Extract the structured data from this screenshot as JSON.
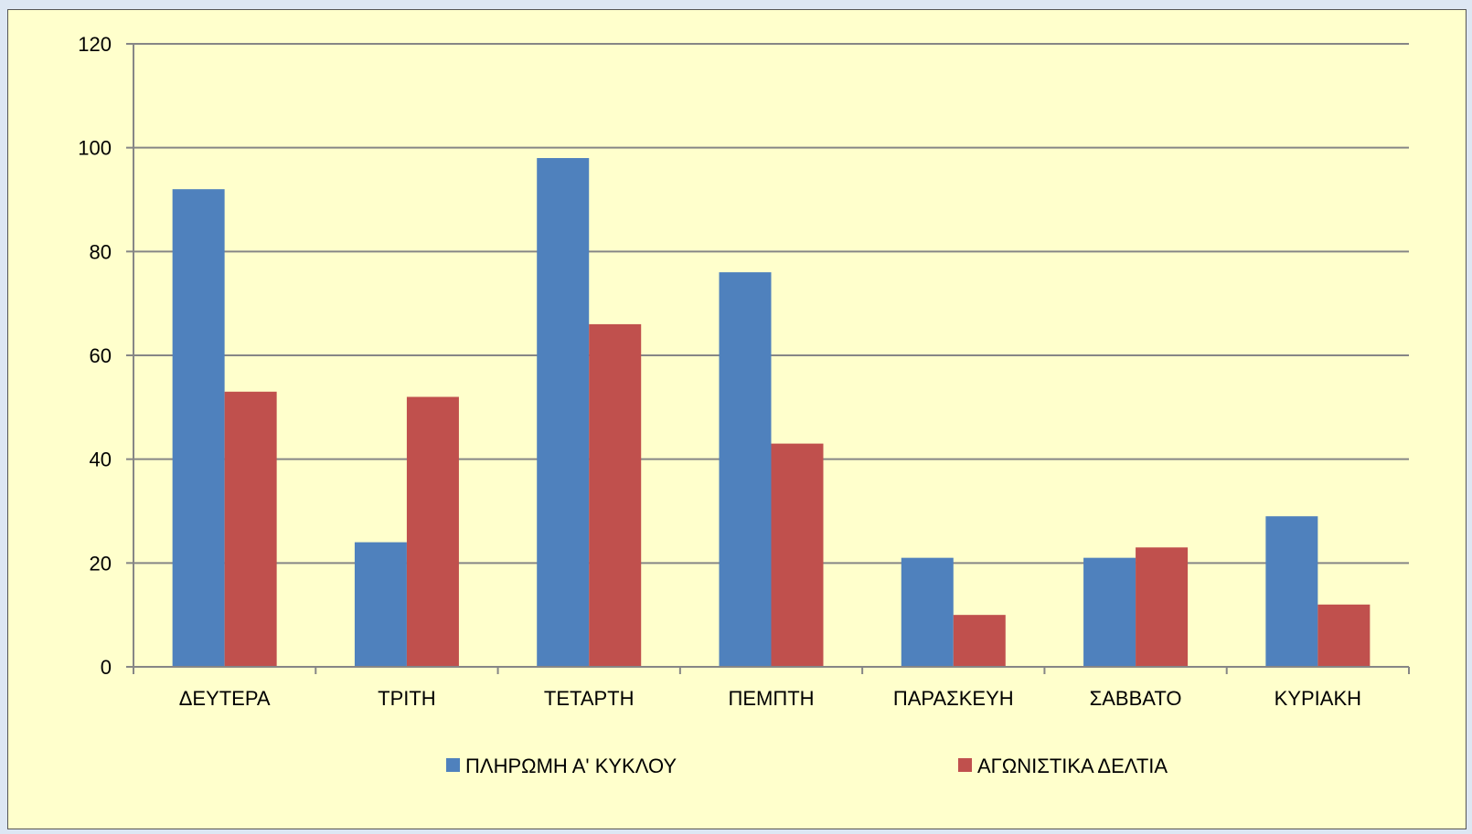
{
  "chart_data": {
    "type": "bar",
    "categories": [
      "ΔΕΥΤΕΡΑ",
      "ΤΡΙΤΗ",
      "ΤΕΤΑΡΤΗ",
      "ΠΕΜΠΤΗ",
      "ΠΑΡΑΣΚΕΥΗ",
      "ΣΑΒΒΑΤΟ",
      "ΚΥΡΙΑΚΗ"
    ],
    "series": [
      {
        "name": "ΠΛΗΡΩΜΗ Α' ΚΥΚΛΟΥ",
        "color": "#4f81bd",
        "values": [
          92,
          24,
          98,
          76,
          21,
          21,
          29
        ]
      },
      {
        "name": "ΑΓΩΝΙΣΤΙΚΑ ΔΕΛΤΙΑ",
        "color": "#c0504d",
        "values": [
          53,
          52,
          66,
          43,
          10,
          23,
          12
        ]
      }
    ],
    "title": "",
    "xlabel": "",
    "ylabel": "",
    "ylim": [
      0,
      120
    ],
    "yticks": [
      0,
      20,
      40,
      60,
      80,
      100,
      120
    ],
    "grid": true,
    "legend": "bottom"
  },
  "colors": {
    "background": "#ffffcc",
    "gridline": "#868686"
  }
}
